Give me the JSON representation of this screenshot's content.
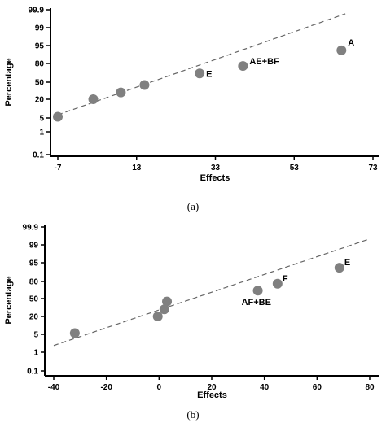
{
  "chart_data": [
    {
      "type": "scatter",
      "caption": "(a)",
      "xlabel": "Effects",
      "ylabel": "Percentage",
      "x_ticks": [
        "-7",
        "13",
        "33",
        "53",
        "73"
      ],
      "y_ticks": [
        "0.1",
        "1",
        "5",
        "20",
        "50",
        "80",
        "95",
        "99",
        "99.9"
      ],
      "xlim": [
        -9,
        75
      ],
      "y_scale": "normal-probability",
      "grid": false,
      "points": [
        {
          "x": -7,
          "y": 6,
          "label": ""
        },
        {
          "x": 2,
          "y": 20,
          "label": ""
        },
        {
          "x": 9,
          "y": 32,
          "label": ""
        },
        {
          "x": 15,
          "y": 45,
          "label": ""
        },
        {
          "x": 29,
          "y": 64,
          "label": "E"
        },
        {
          "x": 40,
          "y": 76,
          "label": "AE+BF"
        },
        {
          "x": 65,
          "y": 91,
          "label": "A"
        }
      ],
      "reference_line": {
        "x": [
          -7,
          66
        ],
        "y": [
          7.5,
          99.7
        ]
      }
    },
    {
      "type": "scatter",
      "caption": "(b)",
      "xlabel": "Effects",
      "ylabel": "Percentage",
      "x_ticks": [
        "-40",
        "-20",
        "0",
        "20",
        "40",
        "60",
        "80"
      ],
      "y_ticks": [
        "0.1",
        "1",
        "5",
        "20",
        "50",
        "80",
        "95",
        "99",
        "99.9"
      ],
      "xlim": [
        -42,
        83
      ],
      "y_scale": "normal-probability",
      "grid": false,
      "points": [
        {
          "x": -32,
          "y": 6,
          "label": ""
        },
        {
          "x": -0.5,
          "y": 20,
          "label": ""
        },
        {
          "x": 2,
          "y": 32,
          "label": ""
        },
        {
          "x": 3,
          "y": 45,
          "label": ""
        },
        {
          "x": 37.5,
          "y": 64,
          "label": "AF+BE"
        },
        {
          "x": 45,
          "y": 76,
          "label": "F"
        },
        {
          "x": 68.5,
          "y": 91,
          "label": "E"
        }
      ],
      "reference_line": {
        "x": [
          -40,
          80
        ],
        "y": [
          2.5,
          99.3
        ]
      }
    }
  ]
}
